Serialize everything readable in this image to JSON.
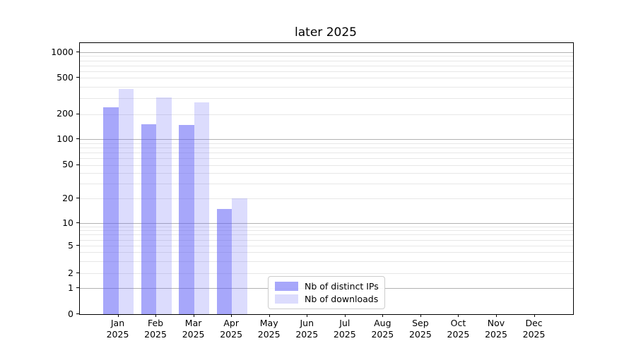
{
  "chart_data": {
    "type": "bar",
    "title": "later 2025",
    "xlabel": "",
    "ylabel": "",
    "yscale": "symlog",
    "grid": true,
    "legend_position": "lower center (inside axes)",
    "y_ticks": [
      0,
      1,
      2,
      5,
      10,
      20,
      50,
      100,
      200,
      500,
      1000
    ],
    "y_tick_labels": [
      "0",
      "1",
      "2",
      "5",
      "10",
      "20",
      "50",
      "100",
      "200",
      "500",
      "1000"
    ],
    "ylim": [
      0,
      1280
    ],
    "categories": [
      "Jan 2025",
      "Feb 2025",
      "Mar 2025",
      "Apr 2025",
      "May 2025",
      "Jun 2025",
      "Jul 2025",
      "Aug 2025",
      "Sep 2025",
      "Oct 2025",
      "Nov 2025",
      "Dec 2025"
    ],
    "x_tick_line1": [
      "Jan",
      "Feb",
      "Mar",
      "Apr",
      "May",
      "Jun",
      "Jul",
      "Aug",
      "Sep",
      "Oct",
      "Nov",
      "Dec"
    ],
    "x_tick_line2": "2025",
    "series": [
      {
        "name": "Nb of distinct IPs",
        "color": "rgba(95,95,245,0.55)",
        "values": [
          235,
          150,
          148,
          15,
          0,
          0,
          0,
          0,
          0,
          0,
          0,
          0
        ]
      },
      {
        "name": "Nb of downloads",
        "color": "rgba(95,95,245,0.22)",
        "values": [
          375,
          305,
          270,
          20,
          0,
          0,
          0,
          0,
          0,
          0,
          0,
          0
        ]
      }
    ]
  },
  "colors": {
    "grid_major": "#b2b2b2",
    "grid_minor": "#e7e7e7",
    "spine": "#000000",
    "text": "#000000",
    "legend_border": "#cccccc"
  }
}
